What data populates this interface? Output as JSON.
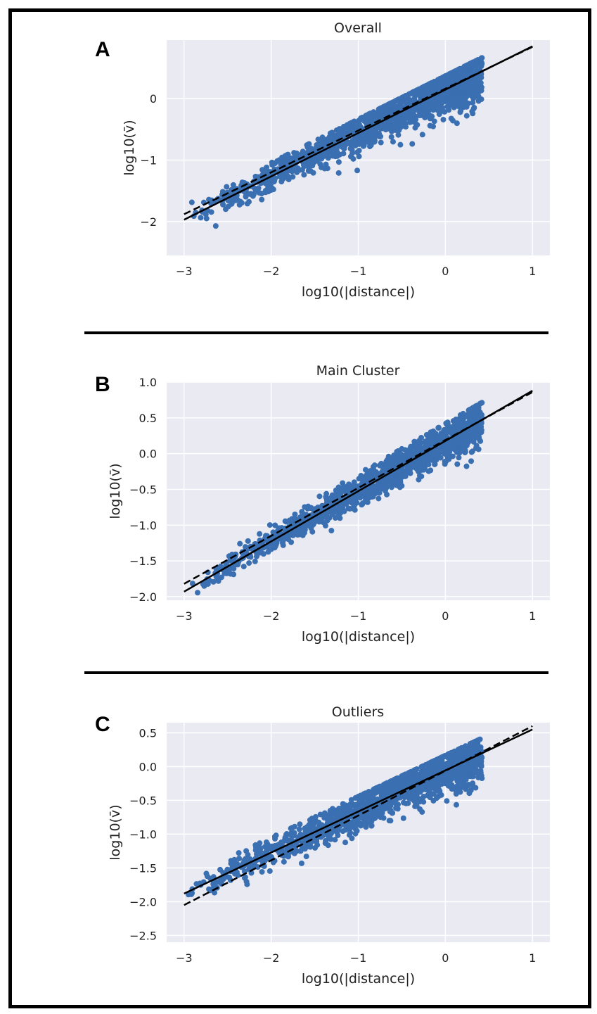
{
  "colors": {
    "plot_bg": "#e9eaf2",
    "grid": "#ffffff",
    "points": "#3a6fb2",
    "fit_line": "#000000",
    "separator": "#000000"
  },
  "chart_data": [
    {
      "type": "scatter",
      "panel_label": "A",
      "title": "Overall",
      "xlabel": "log10(|distance|)",
      "ylabel": "log10(v̄)",
      "xlim": [
        -3.2,
        1.2
      ],
      "ylim": [
        -2.55,
        0.95
      ],
      "xticks": [
        -3,
        -2,
        -1,
        0,
        1
      ],
      "xtick_labels": [
        "−3",
        "−2",
        "−1",
        "0",
        "1"
      ],
      "yticks": [
        -2,
        -1,
        0
      ],
      "ytick_labels": [
        "−2",
        "−1",
        "0"
      ],
      "grid": true,
      "cloud": {
        "x_range": [
          -3.0,
          0.42
        ],
        "spread": 0.15,
        "top_offset": 0.12
      },
      "lines": [
        {
          "style": "solid",
          "x": [
            -3.0,
            1.0
          ],
          "y": [
            -1.97,
            0.85
          ]
        },
        {
          "style": "dashed",
          "x": [
            -3.0,
            1.0
          ],
          "y": [
            -1.88,
            0.84
          ]
        }
      ]
    },
    {
      "type": "scatter",
      "panel_label": "B",
      "title": "Main Cluster",
      "xlabel": "log10(|distance|)",
      "ylabel": "log10(v̄)",
      "xlim": [
        -3.2,
        1.2
      ],
      "ylim": [
        -2.05,
        1.0
      ],
      "xticks": [
        -3,
        -2,
        -1,
        0,
        1
      ],
      "xtick_labels": [
        "−3",
        "−2",
        "−1",
        "0",
        "1"
      ],
      "yticks": [
        -2.0,
        -1.5,
        -1.0,
        -0.5,
        0.0,
        0.5,
        1.0
      ],
      "ytick_labels": [
        "−2.0",
        "−1.5",
        "−1.0",
        "−0.5",
        "0.0",
        "0.5",
        "1.0"
      ],
      "grid": true,
      "cloud": {
        "x_range": [
          -2.95,
          0.42
        ],
        "spread": 0.1,
        "top_offset": 0.14
      },
      "lines": [
        {
          "style": "solid",
          "x": [
            -3.0,
            1.0
          ],
          "y": [
            -1.93,
            0.88
          ]
        },
        {
          "style": "dashed",
          "x": [
            -3.0,
            1.0
          ],
          "y": [
            -1.82,
            0.86
          ]
        }
      ]
    },
    {
      "type": "scatter",
      "panel_label": "C",
      "title": "Outliers",
      "xlabel": "log10(|distance|)",
      "ylabel": "log10(v̄)",
      "xlim": [
        -3.2,
        1.2
      ],
      "ylim": [
        -2.6,
        0.65
      ],
      "xticks": [
        -3,
        -2,
        -1,
        0,
        1
      ],
      "xtick_labels": [
        "−3",
        "−2",
        "−1",
        "0",
        "1"
      ],
      "yticks": [
        -2.5,
        -2.0,
        -1.5,
        -1.0,
        -0.5,
        0.0,
        0.5
      ],
      "ytick_labels": [
        "−2.5",
        "−2.0",
        "−1.5",
        "−1.0",
        "−0.5",
        "0.0",
        "0.5"
      ],
      "grid": true,
      "cloud": {
        "x_range": [
          -3.0,
          0.42
        ],
        "spread": 0.13,
        "top_offset": 0.12
      },
      "lines": [
        {
          "style": "solid",
          "x": [
            -3.0,
            1.0
          ],
          "y": [
            -1.88,
            0.55
          ]
        },
        {
          "style": "dashed",
          "x": [
            -3.0,
            1.0
          ],
          "y": [
            -2.05,
            0.6
          ]
        }
      ]
    }
  ]
}
